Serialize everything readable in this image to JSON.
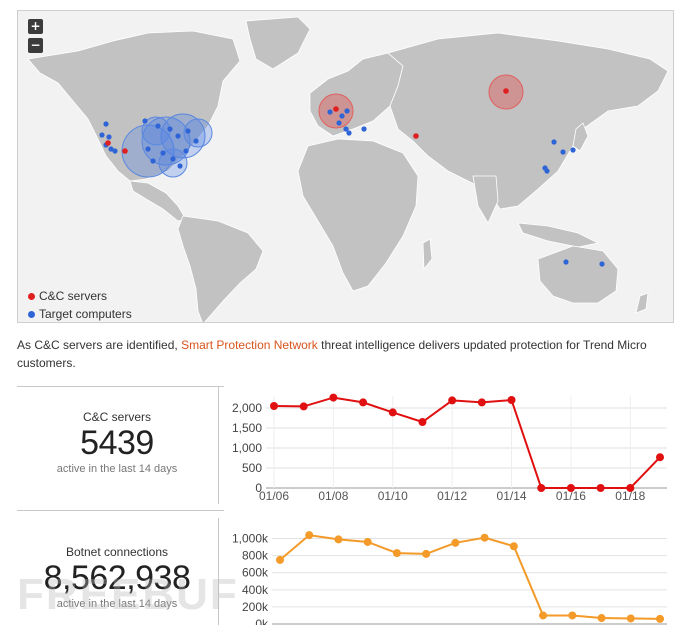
{
  "map": {
    "zoom_in_label": "+",
    "zoom_out_label": "−",
    "legend": [
      {
        "label": "C&C servers",
        "color": "#e02020"
      },
      {
        "label": "Target computers",
        "color": "#2f64d6"
      }
    ]
  },
  "description": {
    "before": "As C&C servers are identified, ",
    "link": "Smart Protection Network",
    "after": " threat intelligence delivers updated protection for Trend Micro customers."
  },
  "stats": [
    {
      "label": "C&C servers",
      "value": "5439",
      "sub": "active in the last 14 days"
    },
    {
      "label": "Botnet connections",
      "value": "8,562,938",
      "sub": "active in the last 14 days"
    }
  ],
  "watermark": "FREEBUF",
  "chart_data": [
    {
      "type": "line",
      "x": [
        "01/06",
        "01/07",
        "01/08",
        "01/09",
        "01/10",
        "01/11",
        "01/12",
        "01/13",
        "01/14",
        "01/15",
        "01/16",
        "01/17",
        "01/18",
        "01/19"
      ],
      "x_tick_labels": [
        "01/06",
        "01/08",
        "01/10",
        "01/12",
        "01/14",
        "01/16",
        "01/18"
      ],
      "series": [
        {
          "values": [
            2050,
            2040,
            2260,
            2140,
            1890,
            1650,
            2190,
            2140,
            2200,
            0,
            0,
            0,
            0,
            770
          ],
          "color": "#e01010"
        }
      ],
      "ylim": [
        0,
        2200
      ],
      "y_ticks": [
        0,
        500,
        1000,
        1500,
        2000
      ],
      "y_tick_labels": [
        "0",
        "500",
        "1,000",
        "1,500",
        "2,000"
      ],
      "grid": true
    },
    {
      "type": "line",
      "x": [
        "01/06",
        "01/07",
        "01/08",
        "01/09",
        "01/10",
        "01/11",
        "01/12",
        "01/13",
        "01/14",
        "01/15",
        "01/16",
        "01/17",
        "01/18",
        "01/19"
      ],
      "series": [
        {
          "values": [
            750000,
            1040000,
            990000,
            960000,
            830000,
            820000,
            950000,
            1010000,
            910000,
            100000,
            100000,
            70000,
            65000,
            60000
          ],
          "color": "#f39a28"
        }
      ],
      "ylim": [
        0,
        1100000
      ],
      "y_ticks": [
        0,
        200000,
        400000,
        600000,
        800000,
        1000000
      ],
      "y_tick_labels": [
        "0k",
        "200k",
        "400k",
        "600k",
        "800k",
        "1,000k"
      ],
      "grid": true
    }
  ]
}
